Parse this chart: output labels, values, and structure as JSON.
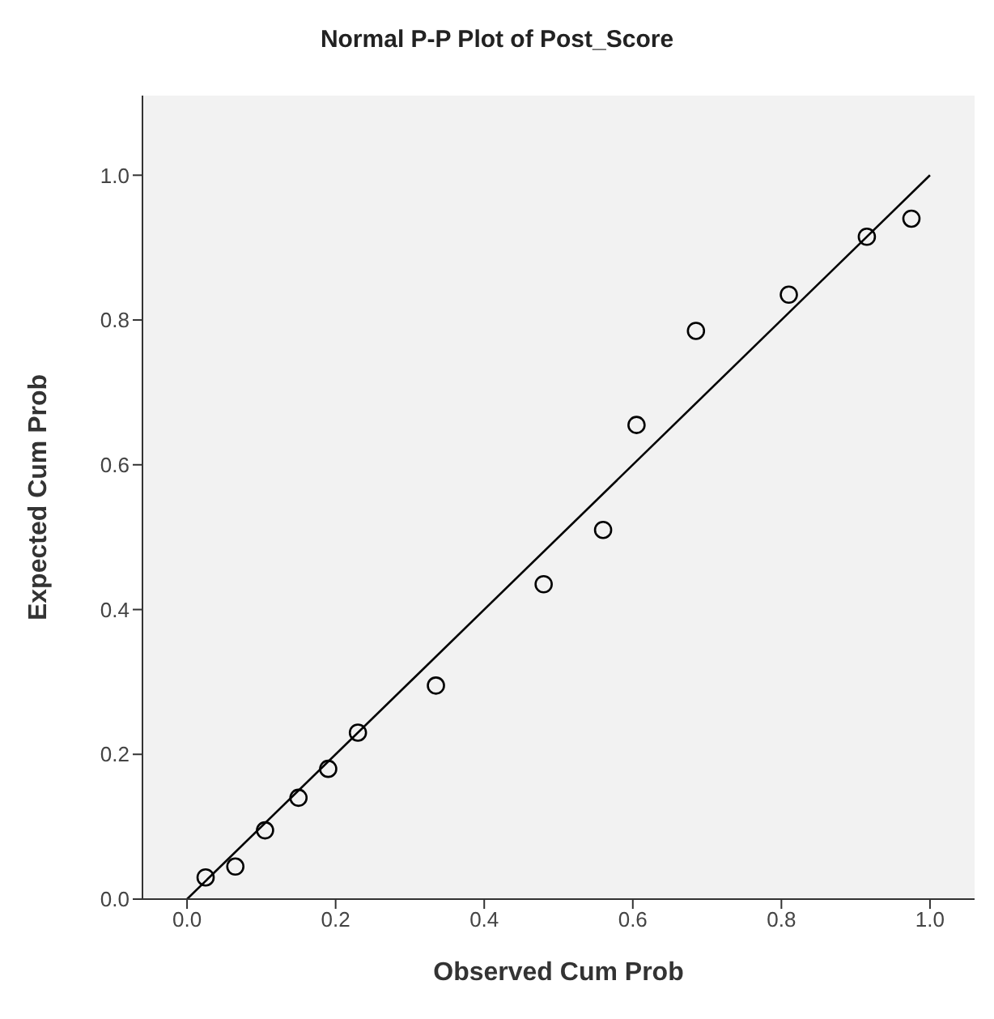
{
  "chart_data": {
    "type": "scatter",
    "title": "Normal P-P Plot of Post_Score",
    "xlabel": "Observed Cum Prob",
    "ylabel": "Expected Cum Prob",
    "x": [
      0.025,
      0.065,
      0.105,
      0.15,
      0.19,
      0.23,
      0.335,
      0.48,
      0.56,
      0.605,
      0.685,
      0.81,
      0.915,
      0.975
    ],
    "series": [
      {
        "color": "#000000",
        "marker": "circle",
        "values": [
          0.03,
          0.045,
          0.095,
          0.14,
          0.18,
          0.23,
          0.295,
          0.435,
          0.51,
          0.655,
          0.785,
          0.835,
          0.915,
          0.94
        ]
      },
      {
        "type": "line",
        "color": "#000000",
        "x": [
          0,
          1
        ],
        "values": [
          0,
          1
        ],
        "marker": "none"
      }
    ],
    "xlim": [
      -0.06,
      1.06
    ],
    "ylim": [
      0,
      1.11
    ],
    "xticks": [
      {
        "value": 0,
        "label": "0.0"
      },
      {
        "value": 0.2,
        "label": "0.2"
      },
      {
        "value": 0.4,
        "label": "0.4"
      },
      {
        "value": 0.6,
        "label": "0.6"
      },
      {
        "value": 0.8,
        "label": "0.8"
      },
      {
        "value": 1,
        "label": "1.0"
      }
    ],
    "yticks": [
      {
        "value": 0,
        "label": "0.0"
      },
      {
        "value": 0.2,
        "label": "0.2"
      },
      {
        "value": 0.4,
        "label": "0.4"
      },
      {
        "value": 0.6,
        "label": "0.6"
      },
      {
        "value": 0.8,
        "label": "0.8"
      },
      {
        "value": 1,
        "label": "1.0"
      }
    ],
    "grid": false,
    "legend": false
  }
}
